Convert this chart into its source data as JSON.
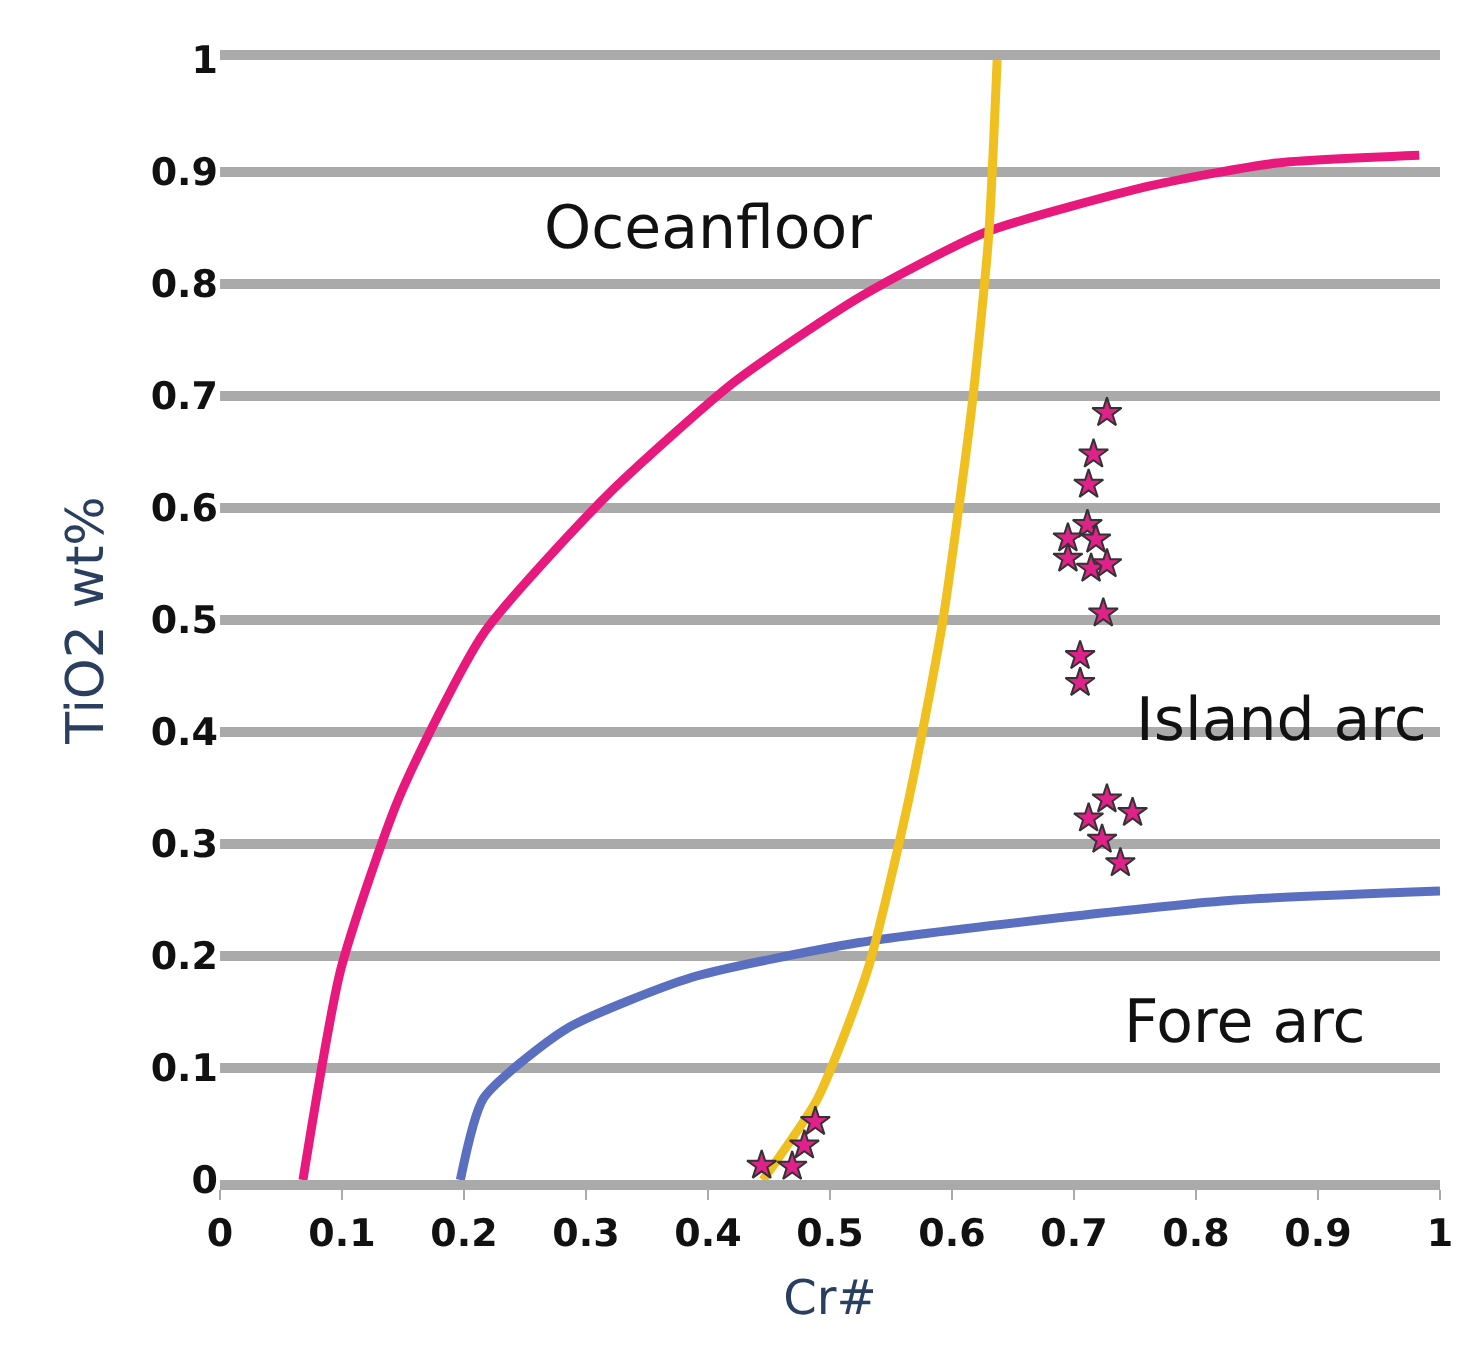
{
  "chart_data": {
    "type": "line",
    "xlabel": "Cr#",
    "ylabel": "TiO2 wt%",
    "xlim": [
      0,
      1
    ],
    "ylim": [
      0,
      1
    ],
    "xticks": [
      0,
      0.1,
      0.2,
      0.3,
      0.4,
      0.5,
      0.6,
      0.7,
      0.8,
      0.9,
      1
    ],
    "yticks": [
      0,
      0.1,
      0.2,
      0.3,
      0.4,
      0.5,
      0.6,
      0.7,
      0.8,
      0.9,
      1
    ],
    "grid": "y",
    "line_style": "solid",
    "series": [
      {
        "color": "#e8197d",
        "marker": "none",
        "x": [
          0.068,
          0.099,
          0.147,
          0.216,
          0.318,
          0.421,
          0.524,
          0.627,
          0.764,
          0.866,
          0.983
        ],
        "values": [
          0,
          0.188,
          0.342,
          0.488,
          0.612,
          0.712,
          0.788,
          0.846,
          0.888,
          0.908,
          0.915
        ]
      },
      {
        "color": "#5b6fc0",
        "marker": "none",
        "x": [
          0.197,
          0.216,
          0.284,
          0.387,
          0.524,
          0.695,
          0.832,
          1.0
        ],
        "values": [
          0,
          0.073,
          0.135,
          0.181,
          0.212,
          0.235,
          0.25,
          0.258
        ]
      },
      {
        "color": "#f0c020",
        "marker": "none",
        "x": [
          0.445,
          0.49,
          0.531,
          0.565,
          0.592,
          0.616,
          0.63,
          0.637
        ],
        "values": [
          0,
          0.073,
          0.188,
          0.342,
          0.496,
          0.688,
          0.842,
          1.0
        ]
      },
      {
        "type": "scatter",
        "color": "#e0218a",
        "marker": "star",
        "x": [
          0.727,
          0.716,
          0.712,
          0.711,
          0.695,
          0.718,
          0.695,
          0.714,
          0.727,
          0.724,
          0.705,
          0.705,
          0.727,
          0.748,
          0.712,
          0.723,
          0.738,
          0.444,
          0.469,
          0.479,
          0.488
        ],
        "values": [
          0.685,
          0.648,
          0.621,
          0.585,
          0.573,
          0.572,
          0.555,
          0.546,
          0.55,
          0.506,
          0.468,
          0.444,
          0.34,
          0.328,
          0.323,
          0.304,
          0.283,
          0.013,
          0.012,
          0.031,
          0.052
        ]
      }
    ],
    "annotations": [
      "Oceanfloor",
      "Island arc",
      "Fore arc"
    ]
  }
}
